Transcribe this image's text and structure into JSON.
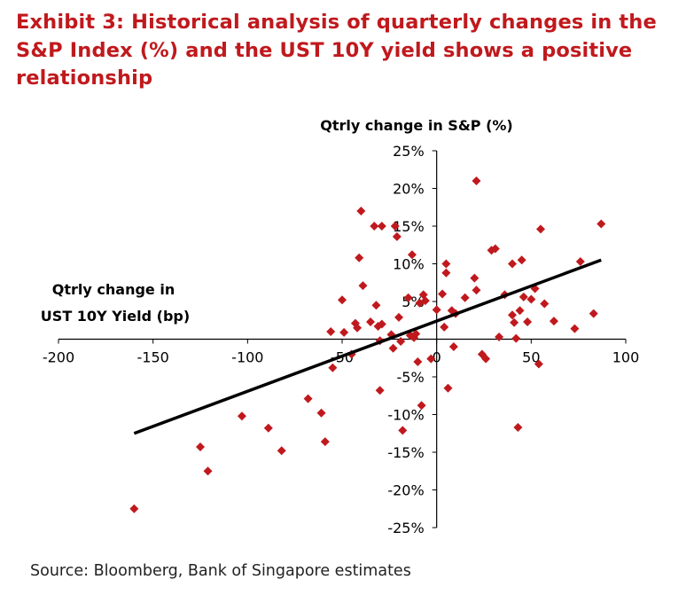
{
  "title": "Exhibit 3: Historical analysis of quarterly changes in the S&P Index (%) and the UST 10Y yield shows a positive relationship",
  "source": "Source: Bloomberg, Bank of Singapore estimates",
  "colors": {
    "title": "#c0191d",
    "points": "#c0191d",
    "trendline": "#000000",
    "axis": "#000000"
  },
  "chart_data": {
    "type": "scatter",
    "title": "",
    "ylabel": "Qtrly change in S&P (%)",
    "xlabel_lines": [
      "Qtrly change in",
      "UST 10Y Yield (bp)"
    ],
    "xlim": [
      -200,
      100
    ],
    "ylim": [
      -25,
      25
    ],
    "x_ticks": [
      -200,
      -150,
      -100,
      -50,
      0,
      50,
      100
    ],
    "x_tick_labels": [
      "-200",
      "-150",
      "-100",
      "-50",
      "0",
      "50",
      "100"
    ],
    "y_ticks": [
      25,
      20,
      15,
      10,
      5,
      0,
      -5,
      -10,
      -15,
      -20,
      -25
    ],
    "y_tick_labels": [
      "25%",
      "20%",
      "15%",
      "10%",
      "5%",
      "",
      "-5%",
      "-10%",
      "-15%",
      "-20%",
      "-25%"
    ],
    "grid": false,
    "legend": "none",
    "trendline": {
      "x": [
        -160,
        87
      ],
      "y": [
        -12.5,
        10.5
      ]
    },
    "points": [
      {
        "x": -160,
        "y": -22.5
      },
      {
        "x": -125,
        "y": -14.3
      },
      {
        "x": -121,
        "y": -17.5
      },
      {
        "x": -103,
        "y": -10.2
      },
      {
        "x": -89,
        "y": -11.8
      },
      {
        "x": -82,
        "y": -14.8
      },
      {
        "x": -68,
        "y": -7.9
      },
      {
        "x": -61,
        "y": -9.8
      },
      {
        "x": -59,
        "y": -13.6
      },
      {
        "x": -56,
        "y": 1.0
      },
      {
        "x": -55,
        "y": -3.8
      },
      {
        "x": -50,
        "y": 5.2
      },
      {
        "x": -49,
        "y": 0.9
      },
      {
        "x": -45,
        "y": -2.0
      },
      {
        "x": -43,
        "y": 2.1
      },
      {
        "x": -42,
        "y": 1.5
      },
      {
        "x": -41,
        "y": 10.8
      },
      {
        "x": -40,
        "y": 17.0
      },
      {
        "x": -39,
        "y": 7.1
      },
      {
        "x": -35,
        "y": 2.3
      },
      {
        "x": -33,
        "y": 15.0
      },
      {
        "x": -32,
        "y": 4.5
      },
      {
        "x": -31,
        "y": 1.7
      },
      {
        "x": -30,
        "y": -0.2
      },
      {
        "x": -30,
        "y": -6.8
      },
      {
        "x": -29,
        "y": 15.0
      },
      {
        "x": -29,
        "y": 2.0
      },
      {
        "x": -24,
        "y": 0.6
      },
      {
        "x": -23,
        "y": -1.2
      },
      {
        "x": -22,
        "y": 15.0
      },
      {
        "x": -21,
        "y": 13.6
      },
      {
        "x": -20,
        "y": 2.9
      },
      {
        "x": -19,
        "y": -0.3
      },
      {
        "x": -18,
        "y": -12.1
      },
      {
        "x": -15,
        "y": 5.5
      },
      {
        "x": -14,
        "y": 0.5
      },
      {
        "x": -13,
        "y": 11.2
      },
      {
        "x": -12,
        "y": 0.2
      },
      {
        "x": -11,
        "y": 0.7
      },
      {
        "x": -10,
        "y": -3.0
      },
      {
        "x": -9,
        "y": 4.8
      },
      {
        "x": -8,
        "y": -8.8
      },
      {
        "x": -7,
        "y": 5.9
      },
      {
        "x": -6,
        "y": 5.1
      },
      {
        "x": -3,
        "y": -2.6
      },
      {
        "x": 0,
        "y": 3.9
      },
      {
        "x": 3,
        "y": 6.0
      },
      {
        "x": 4,
        "y": 1.6
      },
      {
        "x": 5,
        "y": 10.0
      },
      {
        "x": 5,
        "y": 8.8
      },
      {
        "x": 6,
        "y": -6.5
      },
      {
        "x": 8,
        "y": 3.8
      },
      {
        "x": 9,
        "y": -1.0
      },
      {
        "x": 10,
        "y": 3.4
      },
      {
        "x": 15,
        "y": 5.5
      },
      {
        "x": 20,
        "y": 8.1
      },
      {
        "x": 21,
        "y": 6.5
      },
      {
        "x": 21,
        "y": 21.0
      },
      {
        "x": 24,
        "y": -2.0
      },
      {
        "x": 26,
        "y": -2.6
      },
      {
        "x": 29,
        "y": 11.8
      },
      {
        "x": 31,
        "y": 12.0
      },
      {
        "x": 33,
        "y": 0.3
      },
      {
        "x": 36,
        "y": 5.9
      },
      {
        "x": 40,
        "y": 10.0
      },
      {
        "x": 40,
        "y": 3.2
      },
      {
        "x": 41,
        "y": 2.2
      },
      {
        "x": 42,
        "y": 0.1
      },
      {
        "x": 43,
        "y": -11.7
      },
      {
        "x": 44,
        "y": 3.8
      },
      {
        "x": 45,
        "y": 10.5
      },
      {
        "x": 46,
        "y": 5.6
      },
      {
        "x": 48,
        "y": 2.3
      },
      {
        "x": 50,
        "y": 5.3
      },
      {
        "x": 52,
        "y": 6.7
      },
      {
        "x": 54,
        "y": -3.3
      },
      {
        "x": 55,
        "y": 14.6
      },
      {
        "x": 57,
        "y": 4.7
      },
      {
        "x": 62,
        "y": 2.4
      },
      {
        "x": 73,
        "y": 1.4
      },
      {
        "x": 76,
        "y": 10.3
      },
      {
        "x": 83,
        "y": 3.4
      },
      {
        "x": 87,
        "y": 15.3
      }
    ]
  }
}
